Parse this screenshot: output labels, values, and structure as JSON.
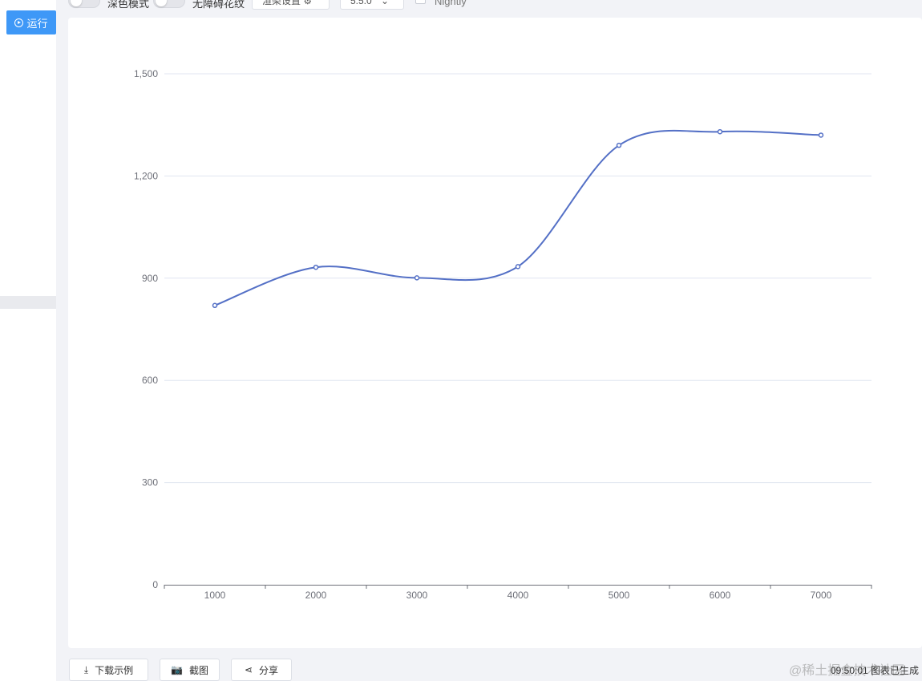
{
  "sidebar": {
    "run_label": "运行"
  },
  "toolbar": {
    "dark_mode_label": "深色模式",
    "no_barrier_label": "无障碍花纹",
    "render_settings_label": "渲染设置",
    "version_value": "5.5.0",
    "nightly_label": "Nightly"
  },
  "footer": {
    "download_label": "下载示例",
    "screenshot_label": "截图",
    "share_label": "分享",
    "status_text": "09:50:01 图表已生成",
    "watermark": "@稀土掘金技术社区"
  },
  "colors": {
    "line": "#5470c6",
    "run_button": "#3e98f7"
  },
  "chart_data": {
    "type": "line",
    "smooth": true,
    "categories": [
      "1000",
      "2000",
      "3000",
      "4000",
      "5000",
      "6000",
      "7000"
    ],
    "series": [
      {
        "values": [
          820,
          932,
          901,
          934,
          1290,
          1330,
          1320
        ]
      }
    ],
    "ylim": [
      0,
      1500
    ],
    "yticks": [
      "0",
      "300",
      "600",
      "900",
      "1,200",
      "1,500"
    ],
    "grid": true
  }
}
